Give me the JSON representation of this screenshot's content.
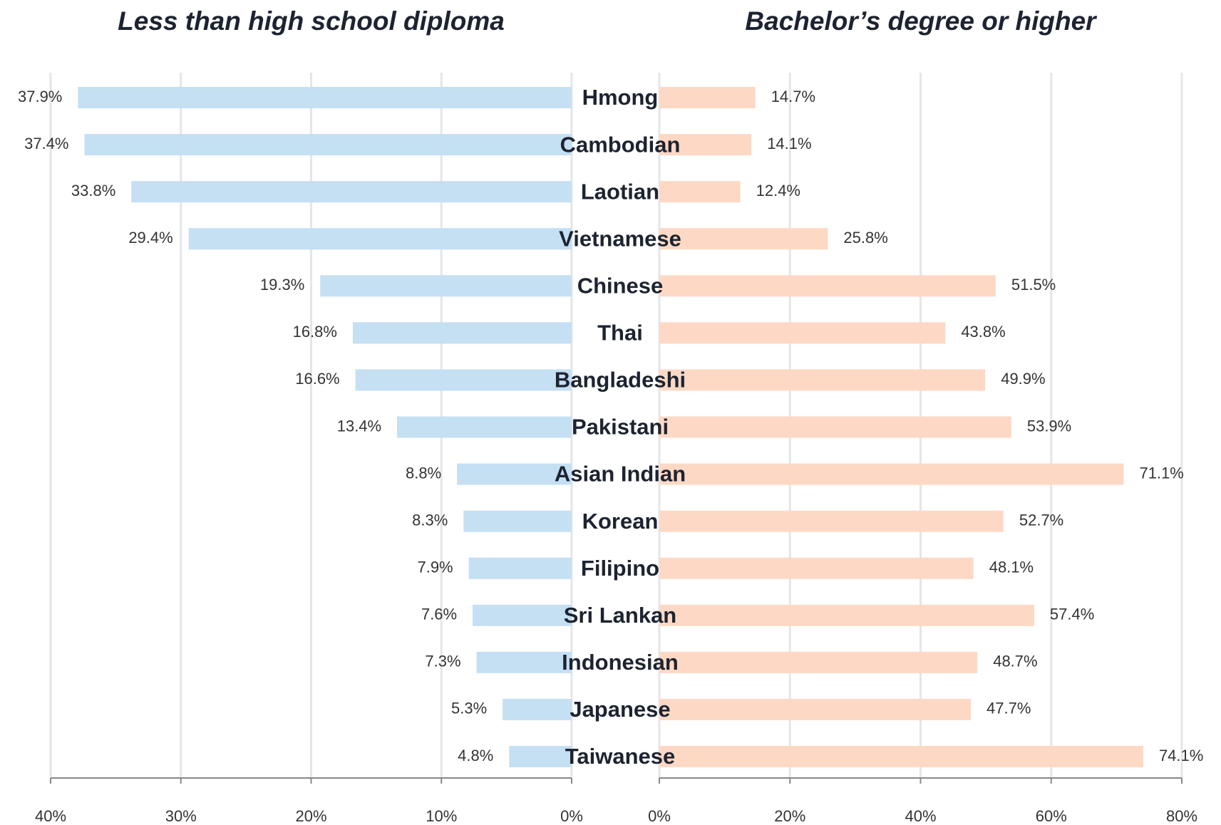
{
  "chart_data": [
    {
      "type": "hbar",
      "title": "Less than high school diploma",
      "categories": [
        "Hmong",
        "Cambodian",
        "Laotian",
        "Vietnamese",
        "Chinese",
        "Thai",
        "Bangladeshi",
        "Pakistani",
        "Asian Indian",
        "Korean",
        "Filipino",
        "Sri Lankan",
        "Indonesian",
        "Japanese",
        "Taiwanese"
      ],
      "values": [
        37.9,
        37.4,
        33.8,
        29.4,
        19.3,
        16.8,
        16.6,
        13.4,
        8.8,
        8.3,
        7.9,
        7.6,
        7.3,
        5.3,
        4.8
      ],
      "value_labels": [
        "37.9%",
        "37.4%",
        "33.8%",
        "29.4%",
        "19.3%",
        "16.8%",
        "16.6%",
        "13.4%",
        "8.8%",
        "8.3%",
        "7.9%",
        "7.6%",
        "7.3%",
        "5.3%",
        "4.8%"
      ],
      "color": "#c5dff3",
      "xlim": [
        40,
        0
      ],
      "xticks": [
        {
          "value": 40,
          "label": "40%"
        },
        {
          "value": 30,
          "label": "30%"
        },
        {
          "value": 20,
          "label": "20%"
        },
        {
          "value": 10,
          "label": "10%"
        },
        {
          "value": 0,
          "label": "0%"
        }
      ],
      "grid": true
    },
    {
      "type": "hbar",
      "title": "Bachelor’s degree or higher",
      "values": [
        14.7,
        14.1,
        12.4,
        25.8,
        51.5,
        43.8,
        49.9,
        53.9,
        71.1,
        52.7,
        48.1,
        57.4,
        48.7,
        47.7,
        74.1
      ],
      "value_labels": [
        "14.7%",
        "14.1%",
        "12.4%",
        "25.8%",
        "51.5%",
        "43.8%",
        "49.9%",
        "53.9%",
        "71.1%",
        "52.7%",
        "48.1%",
        "57.4%",
        "48.7%",
        "47.7%",
        "74.1%"
      ],
      "color": "#fdd9c5",
      "xlim": [
        0,
        80
      ],
      "xticks": [
        {
          "value": 0,
          "label": "0%"
        },
        {
          "value": 20,
          "label": "20%"
        },
        {
          "value": 40,
          "label": "40%"
        },
        {
          "value": 60,
          "label": "60%"
        },
        {
          "value": 80,
          "label": "80%"
        }
      ],
      "grid": true
    }
  ]
}
